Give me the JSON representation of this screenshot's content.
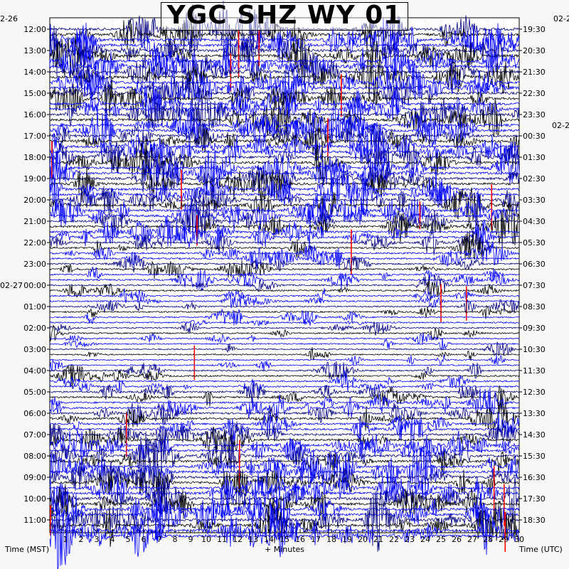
{
  "chart_data": {
    "type": "helicorder",
    "title": "YGC SHZ WY 01",
    "xlabel": "+ Minutes",
    "left_axis_label": "Time (MST)",
    "right_axis_label": "Time (UTC)",
    "x_ticks": [
      "1",
      "2",
      "3",
      "4",
      "5",
      "6",
      "7",
      "8",
      "9",
      "10",
      "11",
      "12",
      "13",
      "14",
      "15",
      "16",
      "17",
      "18",
      "19",
      "20",
      "21",
      "22",
      "23",
      "24",
      "25",
      "26",
      "27",
      "28",
      "29",
      "30"
    ],
    "x_range": [
      0,
      30
    ],
    "date_markers_left": [
      {
        "label": "2-26",
        "before_row": 0
      },
      {
        "label": "02-27",
        "row": 24
      }
    ],
    "date_markers_right": [
      {
        "label": "02-2",
        "before_row": 0
      },
      {
        "label": "02-2",
        "row": 9
      }
    ],
    "left_time_labels": [
      "12:00",
      "13:00",
      "14:00",
      "15:00",
      "16:00",
      "17:00",
      "18:00",
      "19:00",
      "20:00",
      "21:00",
      "22:00",
      "23:00",
      "00:00",
      "01:00",
      "02:00",
      "03:00",
      "04:00",
      "05:00",
      "06:00",
      "07:00",
      "08:00",
      "09:00",
      "10:00",
      "11:00"
    ],
    "right_time_labels": [
      "19:30",
      "20:30",
      "21:30",
      "22:30",
      "23:30",
      "00:30",
      "01:30",
      "02:30",
      "03:30",
      "04:30",
      "05:30",
      "06:30",
      "07:30",
      "08:30",
      "09:30",
      "10:30",
      "11:30",
      "12:30",
      "13:30",
      "14:30",
      "15:30",
      "16:30",
      "17:30",
      "18:30"
    ],
    "trace_colors": [
      "#000080",
      "#000000",
      "#0000ff",
      "#0000ff"
    ],
    "clip_color": "#ff0000",
    "activity_by_hour": [
      0.95,
      0.95,
      0.95,
      0.9,
      0.9,
      0.85,
      0.85,
      0.85,
      0.8,
      0.7,
      0.45,
      0.4,
      0.35,
      0.3,
      0.25,
      0.2,
      0.35,
      0.5,
      0.6,
      0.7,
      0.85,
      0.9,
      0.95,
      0.95
    ]
  }
}
